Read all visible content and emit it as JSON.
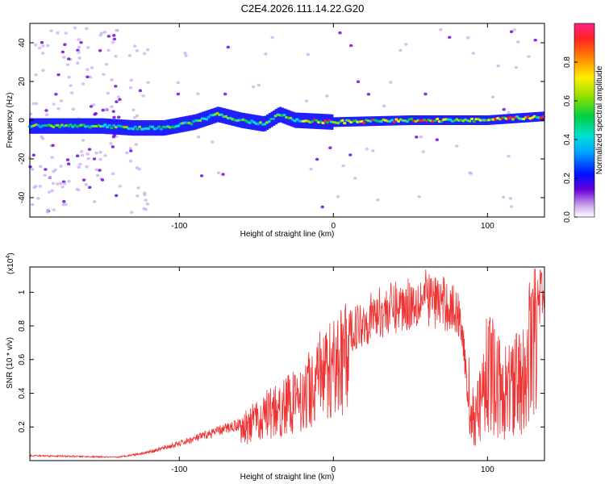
{
  "title": "C2E4.2026.111.14.22.G20",
  "chart_data": [
    {
      "type": "heatmap",
      "xlabel": "Height of straight line (km)",
      "ylabel": "Frequency (Hz)",
      "xlim": [
        -197,
        137
      ],
      "ylim": [
        -50,
        50
      ],
      "x_ticks": [
        -100,
        0,
        100
      ],
      "y_ticks": [
        -40,
        -20,
        0,
        20,
        40
      ],
      "colorbar": {
        "label": "Normalized spectral amplitude",
        "range": [
          0,
          1
        ],
        "ticks": [
          0.0,
          0.2,
          0.4,
          0.6,
          0.8
        ]
      },
      "ridge": [
        {
          "x": -195,
          "f": -3
        },
        {
          "x": -150,
          "f": -3
        },
        {
          "x": -130,
          "f": -4
        },
        {
          "x": -110,
          "f": -4
        },
        {
          "x": -90,
          "f": -1
        },
        {
          "x": -75,
          "f": 3
        },
        {
          "x": -60,
          "f": 0
        },
        {
          "x": -45,
          "f": -2
        },
        {
          "x": -35,
          "f": 3
        },
        {
          "x": -25,
          "f": 0
        },
        {
          "x": 0,
          "f": -1
        },
        {
          "x": 50,
          "f": 0
        },
        {
          "x": 100,
          "f": 0
        },
        {
          "x": 137,
          "f": 2
        }
      ]
    },
    {
      "type": "line",
      "xlabel": "Height of straight line (km)",
      "ylabel": "SNR (10 * v/v)",
      "y_scale_label": "(x10",
      "y_scale_exp": "4",
      "y_scale_close": ")",
      "xlim": [
        -197,
        137
      ],
      "ylim": [
        0,
        1.15
      ],
      "x_ticks": [
        -100,
        0,
        100
      ],
      "y_ticks": [
        0.2,
        0.4,
        0.6,
        0.8,
        1.0
      ],
      "color": "#ee3333",
      "envelope": [
        {
          "x": -197,
          "y": 0.03
        },
        {
          "x": -140,
          "y": 0.02
        },
        {
          "x": -120,
          "y": 0.05
        },
        {
          "x": -100,
          "y": 0.1
        },
        {
          "x": -80,
          "y": 0.16
        },
        {
          "x": -60,
          "y": 0.22
        },
        {
          "x": -45,
          "y": 0.32
        },
        {
          "x": -35,
          "y": 0.38
        },
        {
          "x": -20,
          "y": 0.45
        },
        {
          "x": -10,
          "y": 0.6
        },
        {
          "x": 0,
          "y": 0.66
        },
        {
          "x": 15,
          "y": 0.8
        },
        {
          "x": 30,
          "y": 0.88
        },
        {
          "x": 45,
          "y": 0.92
        },
        {
          "x": 60,
          "y": 0.97
        },
        {
          "x": 75,
          "y": 0.92
        },
        {
          "x": 83,
          "y": 0.85
        },
        {
          "x": 87,
          "y": 0.4
        },
        {
          "x": 92,
          "y": 0.22
        },
        {
          "x": 100,
          "y": 0.55
        },
        {
          "x": 110,
          "y": 0.4
        },
        {
          "x": 125,
          "y": 0.5
        },
        {
          "x": 132,
          "y": 0.95
        },
        {
          "x": 137,
          "y": 1.0
        }
      ]
    }
  ]
}
